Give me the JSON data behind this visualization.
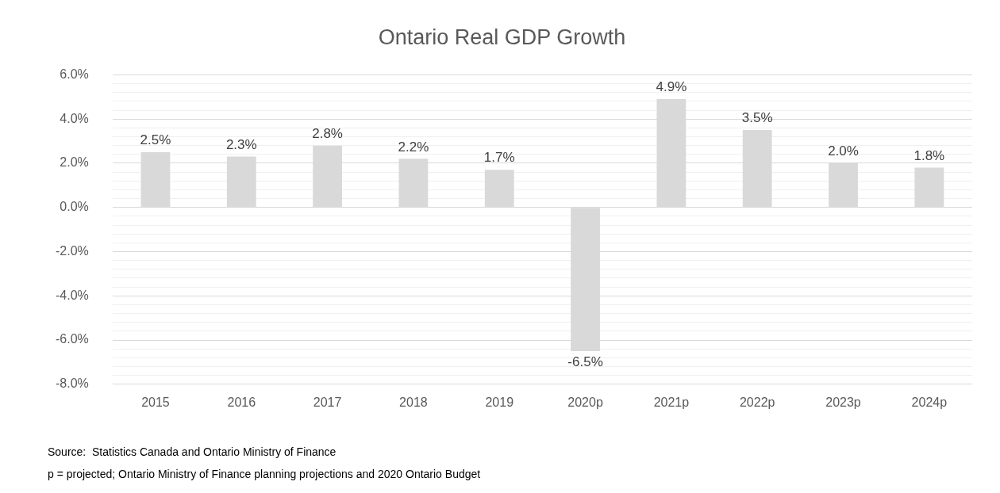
{
  "chart_data": {
    "type": "bar",
    "title": "Ontario Real GDP Growth",
    "categories": [
      "2015",
      "2016",
      "2017",
      "2018",
      "2019",
      "2020p",
      "2021p",
      "2022p",
      "2023p",
      "2024p"
    ],
    "values": [
      2.5,
      2.3,
      2.8,
      2.2,
      1.7,
      -6.5,
      4.9,
      3.5,
      2.0,
      1.8
    ],
    "value_labels": [
      "2.5%",
      "2.3%",
      "2.8%",
      "2.2%",
      "1.7%",
      "-6.5%",
      "4.9%",
      "3.5%",
      "2.0%",
      "1.8%"
    ],
    "color": "#d9d9d9",
    "ylim": [
      -8,
      6
    ],
    "yticks": [
      {
        "value": -8,
        "label": "-8.0%"
      },
      {
        "value": -7.6,
        "label": null
      },
      {
        "value": -7.2,
        "label": null
      },
      {
        "value": -6.8,
        "label": null
      },
      {
        "value": -6.4,
        "label": null
      },
      {
        "value": -6,
        "label": "-6.0%"
      },
      {
        "value": -5.6,
        "label": null
      },
      {
        "value": -5.2,
        "label": null
      },
      {
        "value": -4.8,
        "label": null
      },
      {
        "value": -4.4,
        "label": null
      },
      {
        "value": -4,
        "label": "-4.0%"
      },
      {
        "value": -3.6,
        "label": null
      },
      {
        "value": -3.2,
        "label": null
      },
      {
        "value": -2.8,
        "label": null
      },
      {
        "value": -2.4,
        "label": null
      },
      {
        "value": -2,
        "label": "-2.0%"
      },
      {
        "value": -1.6,
        "label": null
      },
      {
        "value": -1.2,
        "label": null
      },
      {
        "value": -0.8,
        "label": null
      },
      {
        "value": -0.4,
        "label": null
      },
      {
        "value": 0,
        "label": "0.0%"
      },
      {
        "value": 0.4,
        "label": null
      },
      {
        "value": 0.8,
        "label": null
      },
      {
        "value": 1.2,
        "label": null
      },
      {
        "value": 1.6,
        "label": null
      },
      {
        "value": 2,
        "label": "2.0%"
      },
      {
        "value": 2.4,
        "label": null
      },
      {
        "value": 2.8,
        "label": null
      },
      {
        "value": 3.2,
        "label": null
      },
      {
        "value": 3.6,
        "label": null
      },
      {
        "value": 4,
        "label": "4.0%"
      },
      {
        "value": 4.4,
        "label": null
      },
      {
        "value": 4.8,
        "label": null
      },
      {
        "value": 5.2,
        "label": null
      },
      {
        "value": 5.6,
        "label": null
      },
      {
        "value": 6,
        "label": "6.0%"
      }
    ],
    "grid": "y",
    "annotations": [
      "Source:  Statistics Canada and Ontario Ministry of Finance",
      "p = projected; Ontario Ministry of Finance planning projections and 2020 Ontario Budget"
    ]
  }
}
